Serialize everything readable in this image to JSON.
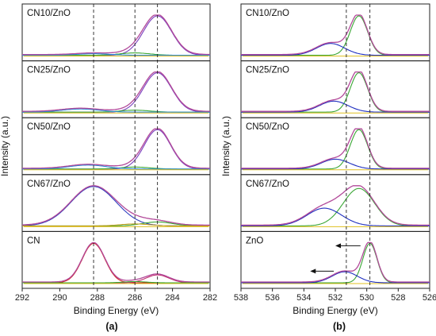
{
  "chart_data": [
    {
      "type": "line",
      "panel": "(a)",
      "xlabel": "Binding Energy (eV)",
      "ylabel": "Intensity (a.u.)",
      "xlim": [
        292,
        282
      ],
      "xticks": [
        "292",
        "290",
        "288",
        "286",
        "284",
        "282"
      ],
      "reference_lines": [
        288.2,
        286.0,
        284.8
      ],
      "subplots": [
        {
          "label": "CN10/ZnO",
          "peaks": [
            {
              "center": 284.8,
              "height": 1.0,
              "width": 0.75,
              "color": "#7b3fbf"
            },
            {
              "center": 286.0,
              "height": 0.06,
              "width": 0.8,
              "color": "#3aa635"
            },
            {
              "center": 288.2,
              "height": 0.04,
              "width": 0.9,
              "color": "#2f8ad6"
            }
          ]
        },
        {
          "label": "CN25/ZnO",
          "peaks": [
            {
              "center": 284.8,
              "height": 1.0,
              "width": 0.75,
              "color": "#7b3fbf"
            },
            {
              "center": 286.0,
              "height": 0.05,
              "width": 0.8,
              "color": "#3aa635"
            },
            {
              "center": 288.9,
              "height": 0.08,
              "width": 1.0,
              "color": "#2f8ad6"
            }
          ]
        },
        {
          "label": "CN50/ZnO",
          "peaks": [
            {
              "center": 284.8,
              "height": 1.0,
              "width": 0.7,
              "color": "#7b3fbf"
            },
            {
              "center": 286.0,
              "height": 0.05,
              "width": 0.8,
              "color": "#3aa635"
            },
            {
              "center": 288.5,
              "height": 0.1,
              "width": 1.0,
              "color": "#2f8ad6"
            }
          ]
        },
        {
          "label": "CN67/ZnO",
          "peaks": [
            {
              "center": 288.2,
              "height": 1.0,
              "width": 1.2,
              "color": "#2f3fbf"
            },
            {
              "center": 284.8,
              "height": 0.1,
              "width": 0.8,
              "color": "#3aa635"
            },
            {
              "center": 286.0,
              "height": 0.05,
              "width": 0.8,
              "color": "#c2a020"
            }
          ]
        },
        {
          "label": "CN",
          "peaks": [
            {
              "center": 288.2,
              "height": 1.0,
              "width": 0.6,
              "color": "#d12020"
            },
            {
              "center": 284.8,
              "height": 0.2,
              "width": 0.6,
              "color": "#c03070"
            },
            {
              "center": 286.0,
              "height": 0.03,
              "width": 0.6,
              "color": "#3aa635"
            }
          ]
        }
      ]
    },
    {
      "type": "line",
      "panel": "(b)",
      "xlabel": "Binding Energy (eV)",
      "ylabel": "Intensity (a.u.)",
      "xlim": [
        538,
        526
      ],
      "xticks": [
        "538",
        "536",
        "534",
        "532",
        "530",
        "528",
        "526"
      ],
      "reference_lines": [
        531.3,
        529.8
      ],
      "subplots": [
        {
          "label": "CN10/ZnO",
          "peaks": [
            {
              "center": 530.5,
              "height": 1.0,
              "width": 0.55,
              "color": "#3aa635"
            },
            {
              "center": 532.3,
              "height": 0.3,
              "width": 0.9,
              "color": "#2030c0"
            }
          ]
        },
        {
          "label": "CN25/ZnO",
          "peaks": [
            {
              "center": 530.5,
              "height": 1.0,
              "width": 0.55,
              "color": "#3aa635"
            },
            {
              "center": 532.1,
              "height": 0.28,
              "width": 0.9,
              "color": "#2030c0"
            }
          ]
        },
        {
          "label": "CN50/ZnO",
          "peaks": [
            {
              "center": 530.5,
              "height": 1.0,
              "width": 0.55,
              "color": "#3aa635"
            },
            {
              "center": 532.0,
              "height": 0.25,
              "width": 0.9,
              "color": "#2030c0"
            }
          ]
        },
        {
          "label": "CN67/ZnO",
          "peaks": [
            {
              "center": 530.5,
              "height": 0.95,
              "width": 1.0,
              "color": "#3aa635"
            },
            {
              "center": 532.7,
              "height": 0.45,
              "width": 1.1,
              "color": "#2030c0"
            }
          ]
        },
        {
          "label": "ZnO",
          "peaks": [
            {
              "center": 529.8,
              "height": 1.0,
              "width": 0.45,
              "color": "#3aa635"
            },
            {
              "center": 531.4,
              "height": 0.28,
              "width": 0.8,
              "color": "#2030c0"
            }
          ]
        }
      ],
      "annotations": [
        "left arrow at 530.5 in ZnO panel",
        "left arrow at 532.0 in ZnO panel"
      ]
    }
  ]
}
